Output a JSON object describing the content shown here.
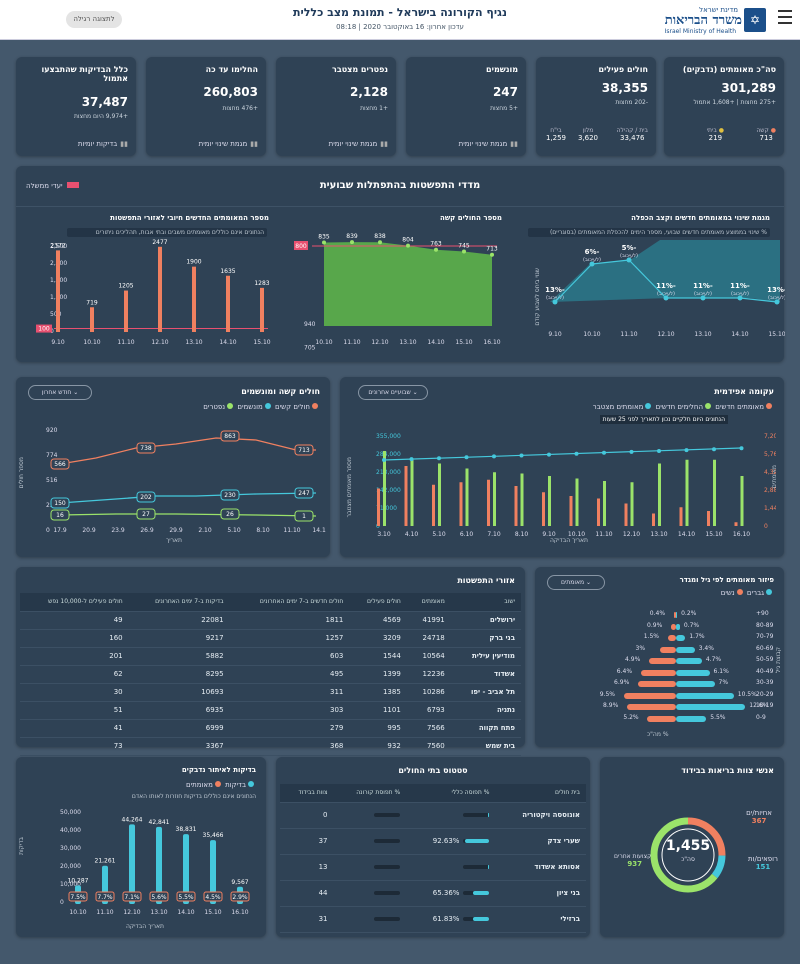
{
  "header": {
    "title": "נגיף הקורונה בישראל - תמונת מצב כללית",
    "updated": "עדכון אחרון: 16 באוקטובר 2020 | 08:18",
    "switch_btn": "לתצוגה רגילה",
    "logo_top": "מדינת ישראל",
    "logo_main": "משרד הבריאות",
    "logo_en": "Israel Ministry of Health"
  },
  "kpis": [
    {
      "title": "סה\"כ מאומתים (נדבקים)",
      "value": "301,289",
      "sub": "+275 מחצות | +1,608 אתמול",
      "extra": [
        {
          "label": "ביתי",
          "value": "219"
        },
        {
          "label": "קשה",
          "value": "713"
        }
      ]
    },
    {
      "title": "חולים פעילים",
      "value": "38,355",
      "sub": "-202 מחצות",
      "extra": [
        {
          "label": "בית / קהילה",
          "value": "33,476"
        },
        {
          "label": "מלון",
          "value": "3,620"
        },
        {
          "label": "בי\"ח",
          "value": "1,259"
        }
      ]
    },
    {
      "title": "מונשמים",
      "value": "247",
      "sub": "+5 מחצות",
      "btn": "מגמת שינוי יומית"
    },
    {
      "title": "נפטרים מצטבר",
      "value": "2,128",
      "sub": "+1 מחצות",
      "btn": "מגמת שינוי יומית"
    },
    {
      "title": "החלימו עד כה",
      "value": "260,803",
      "sub": "+476 מחצות",
      "btn": "מגמת שינוי יומית"
    },
    {
      "title": "כלל הבדיקות שהתבצעו אתמול",
      "value": "37,487",
      "sub": "+9,974 היום מחצות",
      "btn": "בדיקות יומיות"
    }
  ],
  "weekly": {
    "title": "מדדי התפשטות בהתפתלות שבועית",
    "legend": "יעדי ממשלה",
    "p1": {
      "title": "מגמת שינוי במאומתים חדשים וקצב הכפלה",
      "note": "% שינוי בממוצע מאומתים חדשים שבועי, מספר הימים להכפלת המאומתים (בסוגריים)",
      "ylab": "שנוי ביחס לשבוע קודם",
      "dates": [
        "9.10",
        "10.10",
        "11.10",
        "12.10",
        "13.10",
        "14.10",
        "15.10"
      ],
      "points": [
        "-13%",
        "-6%",
        "-5%",
        "-11%",
        "-11%",
        "-11%",
        "-13%"
      ],
      "sublabels": [
        "(לעיכוב)",
        "(לעיכוב)",
        "(לעיכוב)",
        "(לעיכוב)",
        "(לעיכוב)",
        "(לעיכוב)",
        "(לעיכוב)"
      ]
    },
    "p2": {
      "title": "מספר החולים קשה",
      "dates": [
        "10.10",
        "11.10",
        "12.10",
        "13.10",
        "14.10",
        "15.10",
        "16.10"
      ],
      "values": [
        835,
        839,
        838,
        804,
        763,
        745,
        713
      ],
      "target": "800",
      "yticks": [
        "940",
        "705",
        "470",
        "235",
        "0"
      ]
    },
    "p3": {
      "title": "מספר המאומתים החדשים חיובי לאזורי התפשטות",
      "note": "הנתונים אינם כוללים מאומתים משבים ובתי אבות, תהליכים ניתורים",
      "dates": [
        "9.10",
        "10.10",
        "11.10",
        "12.10",
        "13.10",
        "14.10",
        "15.10"
      ],
      "values": [
        2372,
        719,
        1205,
        2477,
        1900,
        1635,
        1283
      ],
      "target": "100",
      "yticks": [
        "2,500",
        "2,000",
        "1,500",
        "1,000",
        "500",
        "0"
      ]
    }
  },
  "severe": {
    "title": "חולים קשה ומונשמים",
    "select": "חודש אחרון",
    "legend": [
      "חולים קשים",
      "מונשמים",
      "נפטרים"
    ],
    "ylab": "מספר חולים",
    "xlab": "תאריך",
    "xticks": [
      "17.9",
      "20.9",
      "23.9",
      "26.9",
      "29.9",
      "2.10",
      "5.10",
      "8.10",
      "11.10",
      "14.10"
    ],
    "yticks": [
      "920",
      "774",
      "516",
      "258",
      "0"
    ],
    "labels": {
      "s1": "566",
      "s2": "738",
      "s3": "863",
      "s4": "713",
      "v1": "150",
      "v2": "202",
      "v3": "230",
      "v4": "247",
      "d1": "16",
      "d2": "27",
      "d3": "26",
      "d4": "1"
    }
  },
  "epi": {
    "title": "עקומה אפידמית",
    "select": "שבועיים אחרונים",
    "legend": [
      "מאומתים חדשים",
      "החלימים חדשים",
      "מאומתים מצטבר"
    ],
    "note": "הנתונים היום חלקיים נכון לתאריך לפני 25 שעות",
    "ylab_r": "מאומתים",
    "ylab_l": "מספר מאומתים מצטבר",
    "xlab": "תאריך הבדיקה",
    "dates": [
      "3.10",
      "4.10",
      "5.10",
      "6.10",
      "7.10",
      "8.10",
      "9.10",
      "10.10",
      "11.10",
      "12.10",
      "13.10",
      "14.10",
      "15.10",
      "16.10"
    ],
    "ytl": [
      "355,000",
      "284,000",
      "213,000",
      "142,000",
      "71,000",
      "0"
    ],
    "ytr": [
      "7,200",
      "5,760",
      "4,320",
      "2,880",
      "1,440",
      "0"
    ]
  },
  "regions": {
    "title": "אזורי התפשטות",
    "cols": [
      "ישוב",
      "מאומתים",
      "חולים פעילים",
      "חולים חדשים ב-7 ימים האחרונים",
      "בדיקות ב-7 ימים האחרונים",
      "חולים פעילים ל-10,000 נפש"
    ],
    "rows": [
      [
        "ירושלים",
        "41991",
        "4569",
        "1811",
        "22081",
        "49"
      ],
      [
        "בני ברק",
        "24718",
        "3209",
        "1257",
        "9217",
        "160"
      ],
      [
        "מודיעין עילית",
        "10564",
        "1544",
        "603",
        "5882",
        "201"
      ],
      [
        "אשדוד",
        "12236",
        "1399",
        "495",
        "8295",
        "62"
      ],
      [
        "תל אביב - יפו",
        "10286",
        "1385",
        "311",
        "10693",
        "30"
      ],
      [
        "נתניה",
        "6793",
        "1101",
        "303",
        "6935",
        "51"
      ],
      [
        "פתח תקווה",
        "7566",
        "995",
        "279",
        "6999",
        "41"
      ],
      [
        "בית שמש",
        "7560",
        "932",
        "368",
        "3367",
        "73"
      ]
    ]
  },
  "age": {
    "title": "פיזור מאומתים לפי גיל ומגדר",
    "select": "מאומתים",
    "legend": [
      "גברים",
      "נשים"
    ],
    "ylab": "קבוצת גיל",
    "xlab": "% מה\"כ",
    "rows": [
      {
        "g": "90+",
        "w": "0.4%",
        "m": "0.2%"
      },
      {
        "g": "80-89",
        "w": "0.9%",
        "m": "0.7%"
      },
      {
        "g": "70-79",
        "w": "1.5%",
        "m": "1.7%"
      },
      {
        "g": "60-69",
        "w": "3%",
        "m": "3.4%"
      },
      {
        "g": "50-59",
        "w": "4.9%",
        "m": "4.7%"
      },
      {
        "g": "40-49",
        "w": "6.4%",
        "m": "6.1%"
      },
      {
        "g": "30-39",
        "w": "6.9%",
        "m": "7%"
      },
      {
        "g": "20-29",
        "w": "9.5%",
        "m": "10.5%"
      },
      {
        "g": "10-19",
        "w": "8.9%",
        "m": "12.6%"
      },
      {
        "g": "0-9",
        "w": "5.2%",
        "m": "5.5%"
      }
    ]
  },
  "tests": {
    "title": "בדיקות לאיתור נדבקים",
    "legend": [
      "בדיקות",
      "מאומתים"
    ],
    "note": "הנתונים אינם כוללים בדיקות חוזרות לאותו האדם",
    "ylab": "בדיקות",
    "xlab": "תאריך הבדיקה",
    "dates": [
      "10.10",
      "11.10",
      "12.10",
      "13.10",
      "14.10",
      "15.10",
      "16.10"
    ],
    "values": [
      "10,287",
      "21,261",
      "44,264",
      "42,841",
      "38,831",
      "35,466",
      "9,567"
    ],
    "pct": [
      "7.5%",
      "7.7%",
      "7.1%",
      "5.6%",
      "5.5%",
      "4.5%",
      "2.9%"
    ],
    "yticks": [
      "50,000",
      "40,000",
      "30,000",
      "20,000",
      "10,000",
      "0"
    ]
  },
  "hospitals": {
    "title": "סטטוס בתי החולים",
    "cols": [
      "בית חולים",
      "% תפוסה כללי",
      "% תפוסת קורונה",
      "צוות בבידוד"
    ],
    "rows": [
      [
        "אונוססה ויקטוריה",
        "",
        "",
        "0"
      ],
      [
        "שערי צדק",
        "92.63%",
        "",
        "37"
      ],
      [
        "אסותא אשדוד",
        "",
        "",
        "13"
      ],
      [
        "בני ציון",
        "65.36%",
        "",
        "44"
      ],
      [
        "ברזילי",
        "61.83%",
        "",
        "31"
      ]
    ]
  },
  "staff": {
    "title": "אנשי צוות בריאות בבידוד",
    "total": "1,455",
    "total_label": "סה\"כ",
    "nurses": "אחיות/ים",
    "nurses_v": "367",
    "doctors": "רופאים/ות",
    "doctors_v": "151",
    "other": "מקצועות אחרים",
    "other_v": "937"
  }
}
